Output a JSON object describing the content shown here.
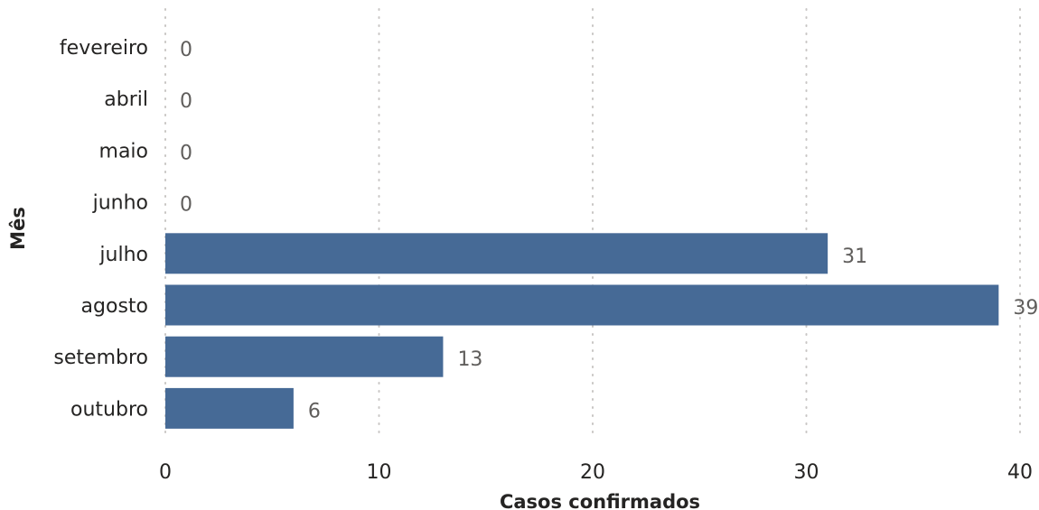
{
  "chart_data": {
    "type": "bar",
    "orientation": "horizontal",
    "categories": [
      "fevereiro",
      "abril",
      "maio",
      "junho",
      "julho",
      "agosto",
      "setembro",
      "outubro"
    ],
    "values": [
      0,
      0,
      0,
      0,
      31,
      39,
      13,
      6
    ],
    "title": "",
    "xlabel": "Casos confirmados",
    "ylabel": "Mês",
    "xlim": [
      0,
      40
    ],
    "xticks": [
      0,
      10,
      20,
      30,
      40
    ],
    "grid": true,
    "legend": "none",
    "bar_color": "#466a96"
  }
}
